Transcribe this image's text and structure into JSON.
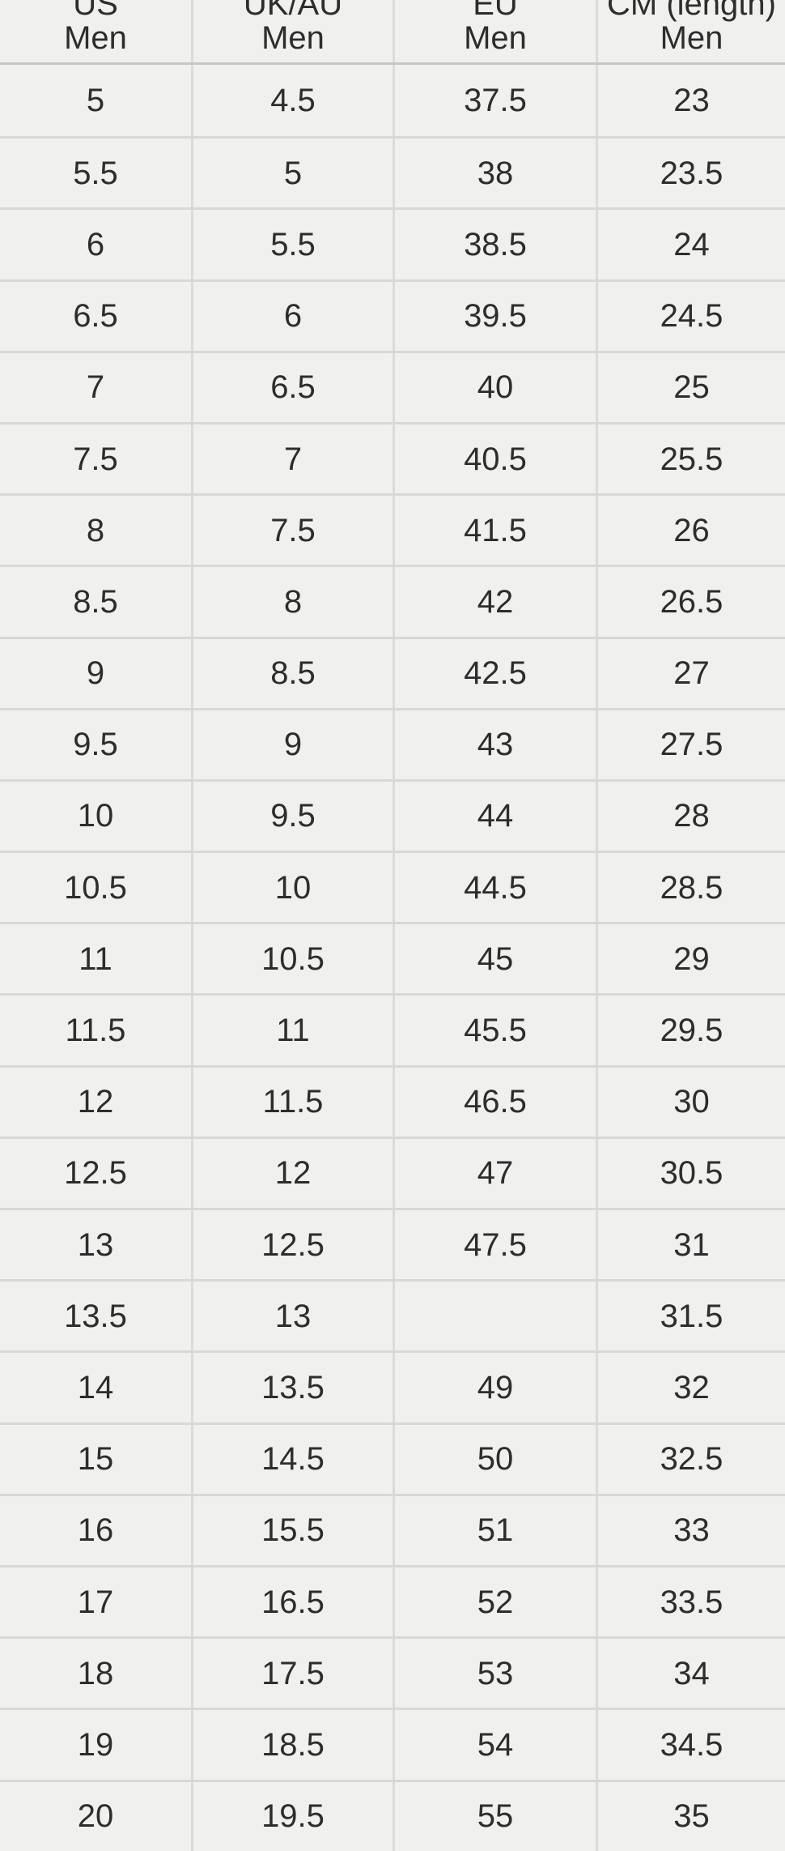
{
  "table": {
    "columns": [
      {
        "region": "US",
        "group": "Men"
      },
      {
        "region": "UK/AU",
        "group": "Men"
      },
      {
        "region": "EU",
        "group": "Men"
      },
      {
        "region": "CM (length)",
        "group": "Men"
      }
    ],
    "rows": [
      [
        "5",
        "4.5",
        "37.5",
        "23"
      ],
      [
        "5.5",
        "5",
        "38",
        "23.5"
      ],
      [
        "6",
        "5.5",
        "38.5",
        "24"
      ],
      [
        "6.5",
        "6",
        "39.5",
        "24.5"
      ],
      [
        "7",
        "6.5",
        "40",
        "25"
      ],
      [
        "7.5",
        "7",
        "40.5",
        "25.5"
      ],
      [
        "8",
        "7.5",
        "41.5",
        "26"
      ],
      [
        "8.5",
        "8",
        "42",
        "26.5"
      ],
      [
        "9",
        "8.5",
        "42.5",
        "27"
      ],
      [
        "9.5",
        "9",
        "43",
        "27.5"
      ],
      [
        "10",
        "9.5",
        "44",
        "28"
      ],
      [
        "10.5",
        "10",
        "44.5",
        "28.5"
      ],
      [
        "11",
        "10.5",
        "45",
        "29"
      ],
      [
        "11.5",
        "11",
        "45.5",
        "29.5"
      ],
      [
        "12",
        "11.5",
        "46.5",
        "30"
      ],
      [
        "12.5",
        "12",
        "47",
        "30.5"
      ],
      [
        "13",
        "12.5",
        "47.5",
        "31"
      ],
      [
        "13.5",
        "13",
        "",
        "31.5"
      ],
      [
        "14",
        "13.5",
        "49",
        "32"
      ],
      [
        "15",
        "14.5",
        "50",
        "32.5"
      ],
      [
        "16",
        "15.5",
        "51",
        "33"
      ],
      [
        "17",
        "16.5",
        "52",
        "33.5"
      ],
      [
        "18",
        "17.5",
        "53",
        "34"
      ],
      [
        "19",
        "18.5",
        "54",
        "34.5"
      ],
      [
        "20",
        "19.5",
        "55",
        "35"
      ]
    ]
  },
  "colors": {
    "background": "#f0f0ee",
    "text": "#2d2d2d",
    "row_border": "#d8d8d6",
    "header_border": "#c7c7c5",
    "column_border": "#dbdbd9"
  }
}
